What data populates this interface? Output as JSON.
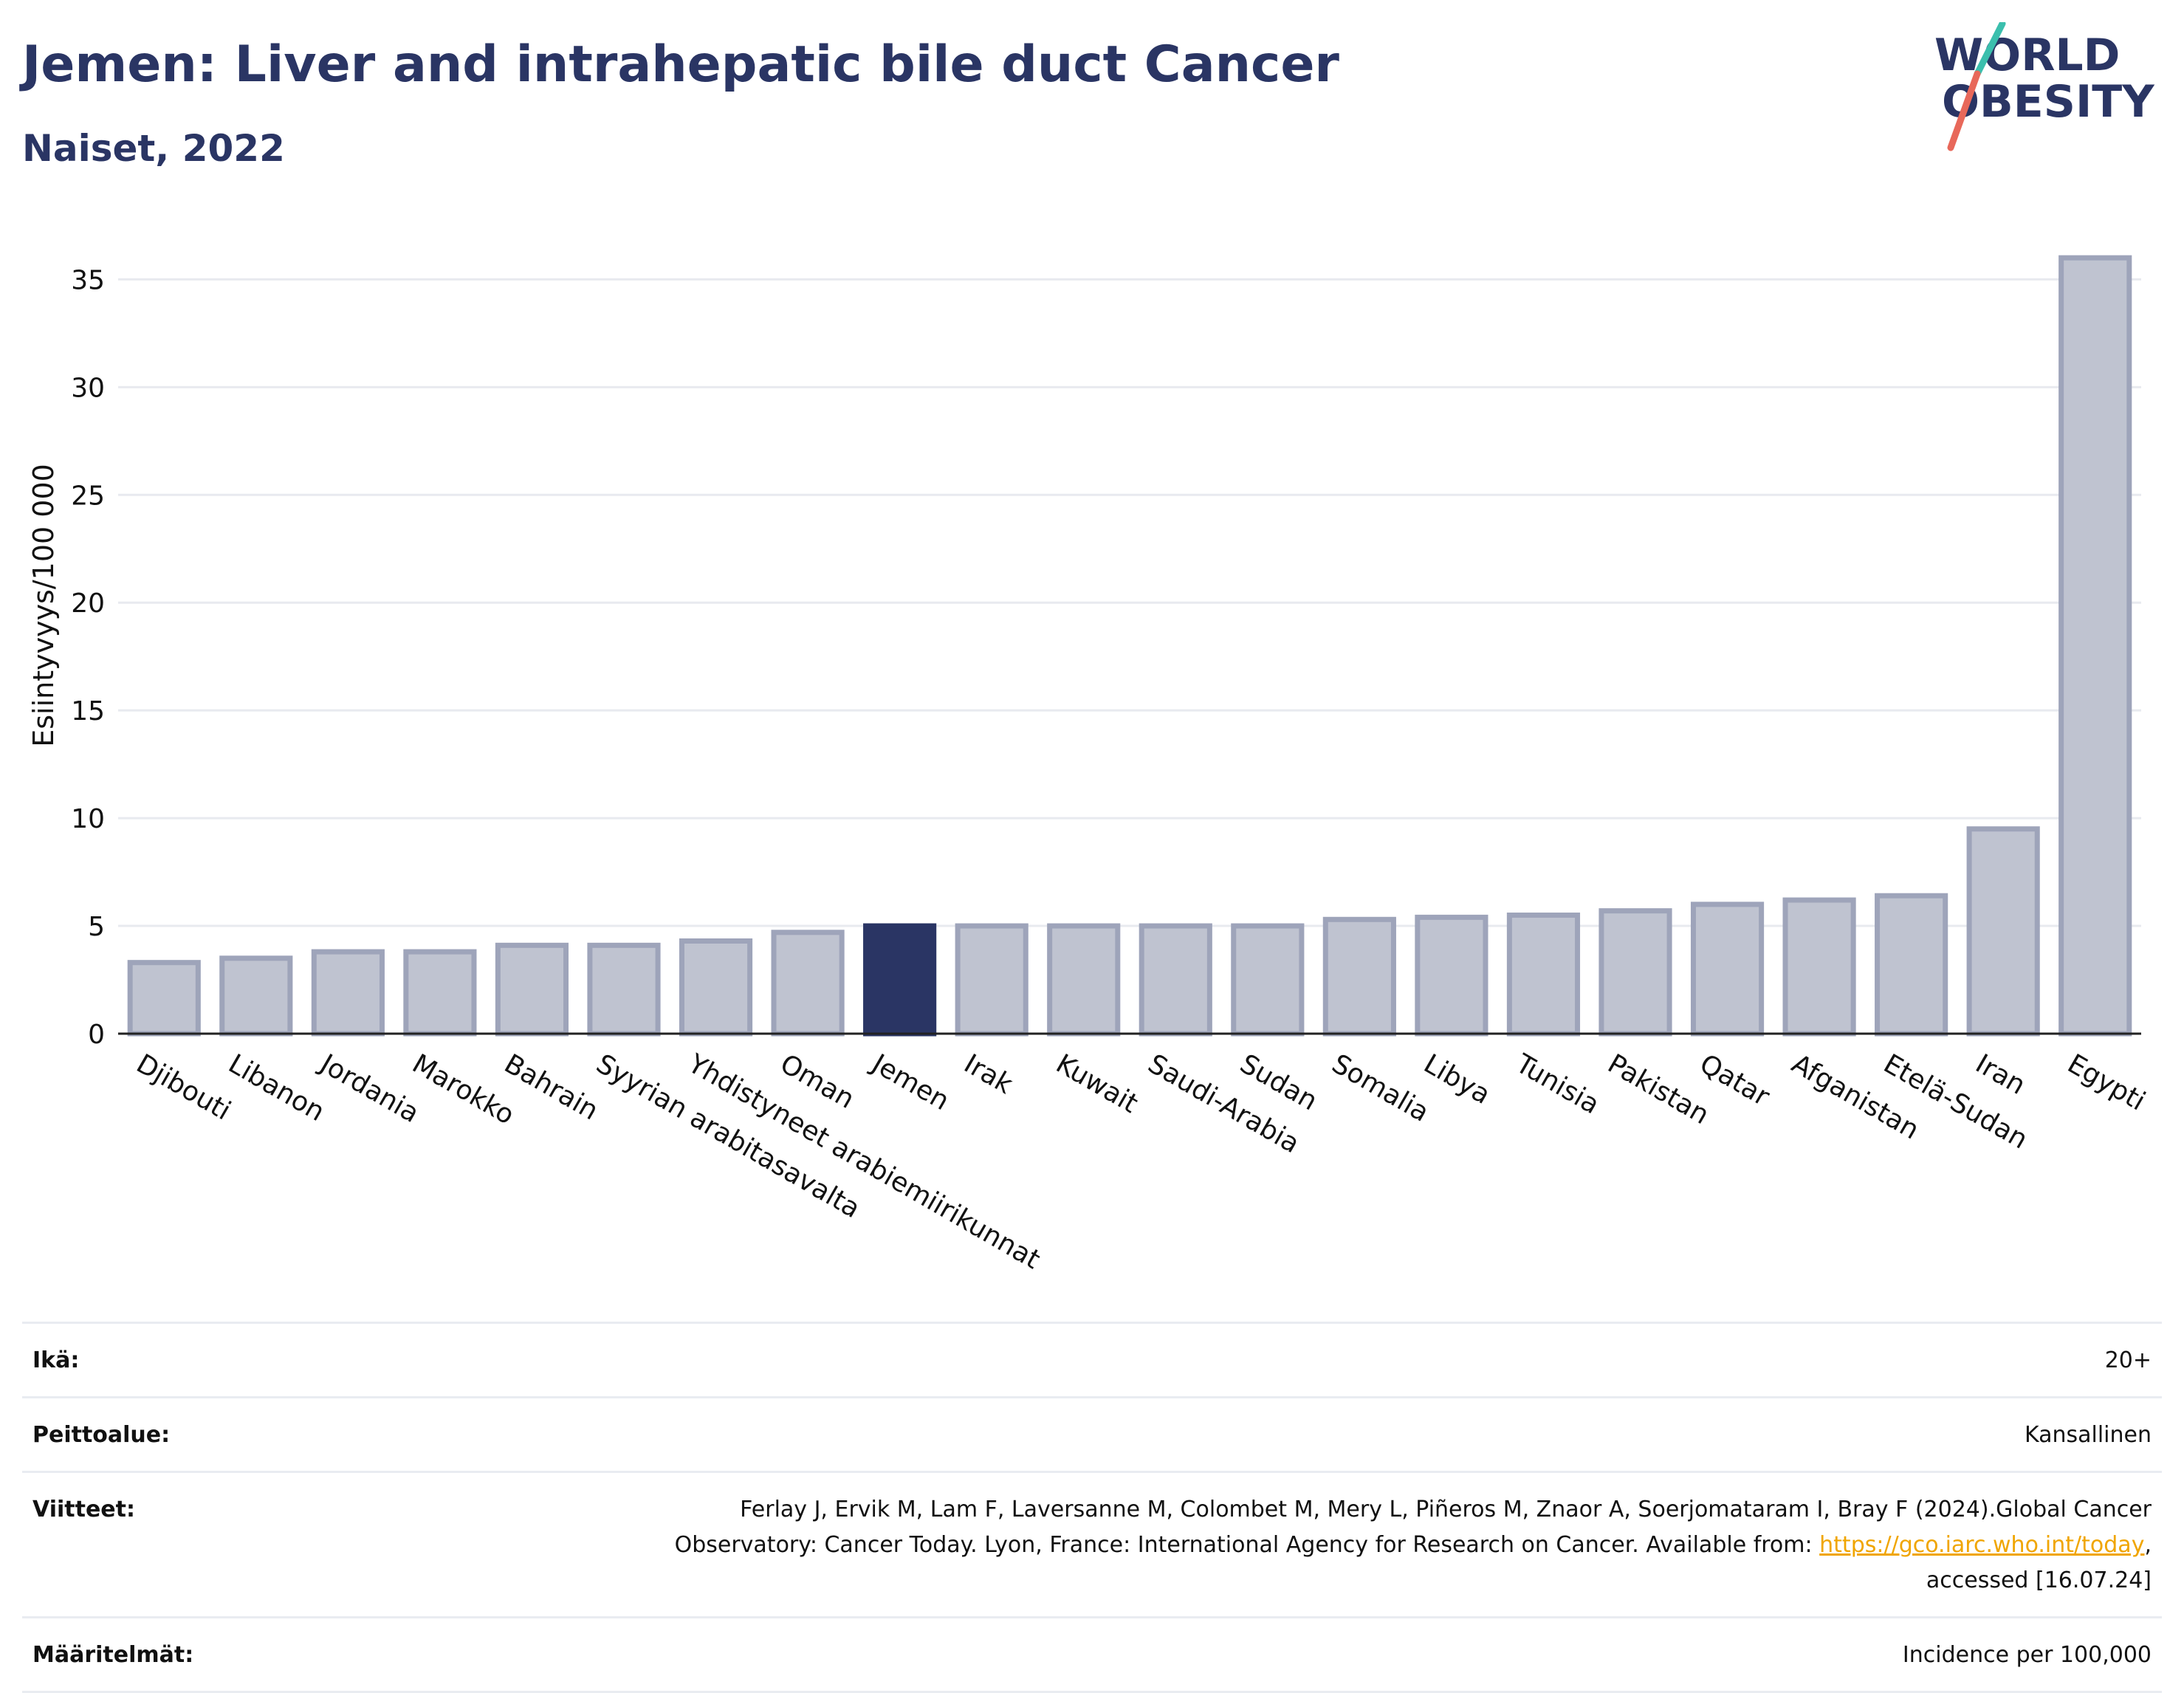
{
  "header": {
    "title": "Jemen: Liver and intrahepatic bile duct Cancer",
    "subtitle": "Naiset, 2022"
  },
  "logo": {
    "line1": "WORLD",
    "line2": "OBESITY",
    "text_color": "#2a3564",
    "slash_colors": [
      "#3bbfad",
      "#e8685a"
    ]
  },
  "chart_data": {
    "type": "bar",
    "title": "Jemen: Liver and intrahepatic bile duct Cancer",
    "subtitle": "Naiset, 2022",
    "xlabel": "",
    "ylabel": "Esiintyvyys/100 000",
    "ylim": [
      0,
      37
    ],
    "yticks": [
      0,
      5,
      10,
      15,
      20,
      25,
      30,
      35
    ],
    "grid": true,
    "highlight": "Jemen",
    "highlight_color": "#2a3564",
    "bar_color": "#bfc3d0",
    "bar_border_color": "#9ea4ba",
    "categories": [
      "Djibouti",
      "Libanon",
      "Jordania",
      "Marokko",
      "Bahrain",
      "Syyrian arabitasavalta",
      "Yhdistyneet arabiemiirikunnat",
      "Oman",
      "Jemen",
      "Irak",
      "Kuwait",
      "Saudi-Arabia",
      "Sudan",
      "Somalia",
      "Libya",
      "Tunisia",
      "Pakistan",
      "Qatar",
      "Afganistan",
      "Etelä-Sudan",
      "Iran",
      "Egypti"
    ],
    "values": [
      3.3,
      3.5,
      3.8,
      3.8,
      4.1,
      4.1,
      4.3,
      4.7,
      5.0,
      5.0,
      5.0,
      5.0,
      5.0,
      5.3,
      5.4,
      5.5,
      5.7,
      6.0,
      6.2,
      6.4,
      9.5,
      36.0
    ]
  },
  "info": {
    "rows": [
      {
        "label": "Ikä:",
        "value": "20+"
      },
      {
        "label": "Peittoalue:",
        "value": "Kansallinen"
      },
      {
        "label": "Viitteet:",
        "value_pre": "Ferlay J, Ervik M, Lam F, Laversanne M, Colombet M, Mery L, Piñeros M, Znaor A, Soerjomataram I, Bray F (2024).Global Cancer Observatory: Cancer Today. Lyon, France: International Agency for Research on Cancer. Available from: ",
        "link": "https://gco.iarc.who.int/today",
        "value_post": ", accessed [16.07.24]"
      },
      {
        "label": "Määritelmät:",
        "value": "Incidence per 100,000"
      }
    ]
  }
}
